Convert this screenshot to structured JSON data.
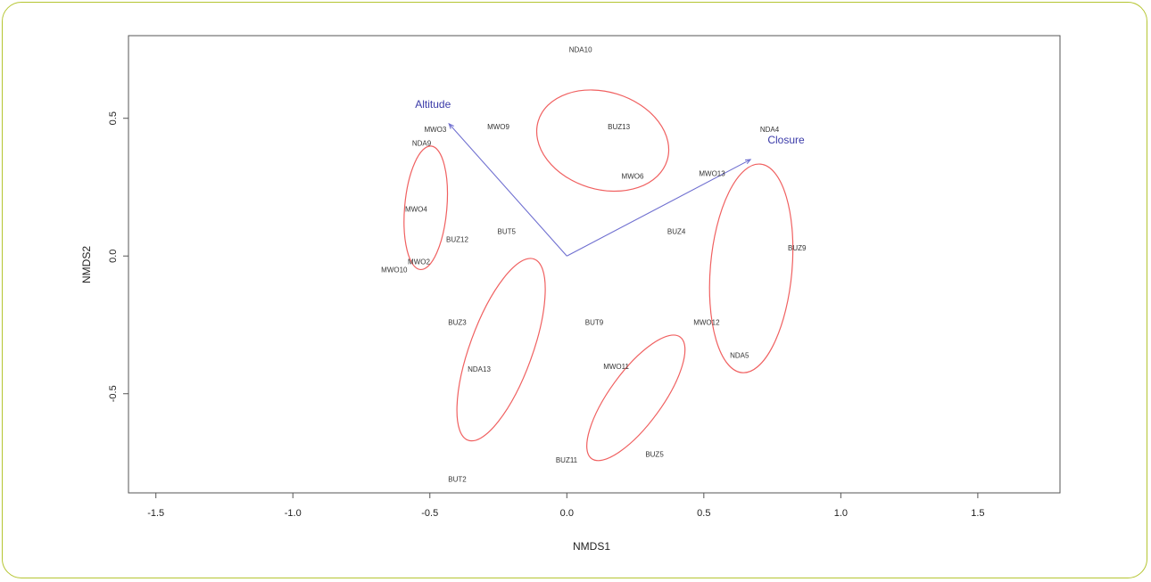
{
  "chart_data": {
    "type": "scatter",
    "title": "",
    "xlabel": "NMDS1",
    "ylabel": "NMDS2",
    "xlim": [
      -1.6,
      1.8
    ],
    "ylim": [
      -0.86,
      0.8
    ],
    "xticks": [
      "-1.5",
      "-1.0",
      "-0.5",
      "0.0",
      "0.5",
      "1.0",
      "1.5"
    ],
    "xtick_values": [
      -1.5,
      -1.0,
      -0.5,
      0.0,
      0.5,
      1.0,
      1.5
    ],
    "yticks": [
      "-0.5",
      "0.0",
      "0.5"
    ],
    "ytick_values": [
      -0.5,
      0.0,
      0.5
    ],
    "grid": false,
    "colors": {
      "points": "#333333",
      "ellipses": "#f06060",
      "vectors": "#6f6fd0",
      "vector_labels": "#3a3aa8",
      "frame_accent": "#b5c531"
    },
    "points": [
      {
        "label": "NDA10",
        "x": 0.05,
        "y": 0.75
      },
      {
        "label": "BUZ13",
        "x": 0.19,
        "y": 0.47
      },
      {
        "label": "MWO9",
        "x": -0.25,
        "y": 0.47
      },
      {
        "label": "MWO3",
        "x": -0.48,
        "y": 0.46
      },
      {
        "label": "NDA9",
        "x": -0.53,
        "y": 0.41
      },
      {
        "label": "NDA4",
        "x": 0.74,
        "y": 0.46
      },
      {
        "label": "MWO6",
        "x": 0.24,
        "y": 0.29
      },
      {
        "label": "MWO13",
        "x": 0.53,
        "y": 0.3
      },
      {
        "label": "MWO4",
        "x": -0.55,
        "y": 0.17
      },
      {
        "label": "BUT5",
        "x": -0.22,
        "y": 0.09
      },
      {
        "label": "BUZ12",
        "x": -0.4,
        "y": 0.06
      },
      {
        "label": "BUZ4",
        "x": 0.4,
        "y": 0.09
      },
      {
        "label": "BUZ9",
        "x": 0.84,
        "y": 0.03
      },
      {
        "label": "MWO2",
        "x": -0.54,
        "y": -0.02
      },
      {
        "label": "MWO10",
        "x": -0.63,
        "y": -0.05
      },
      {
        "label": "BUZ3",
        "x": -0.4,
        "y": -0.24
      },
      {
        "label": "BUT9",
        "x": 0.1,
        "y": -0.24
      },
      {
        "label": "MWO12",
        "x": 0.51,
        "y": -0.24
      },
      {
        "label": "NDA5",
        "x": 0.63,
        "y": -0.36
      },
      {
        "label": "NDA13",
        "x": -0.32,
        "y": -0.41
      },
      {
        "label": "MWO11",
        "x": 0.18,
        "y": -0.4
      },
      {
        "label": "BUZ11",
        "x": -0.001,
        "y": -0.74
      },
      {
        "label": "BUZ5",
        "x": 0.32,
        "y": -0.72
      },
      {
        "label": "BUT2",
        "x": -0.4,
        "y": -0.81
      }
    ],
    "ellipses": [
      {
        "cx": -0.515,
        "cy": 0.175,
        "rx": 0.077,
        "ry": 0.225,
        "angle": 5
      },
      {
        "cx": 0.131,
        "cy": 0.419,
        "rx": 0.246,
        "ry": 0.177,
        "angle": 17
      },
      {
        "cx": 0.673,
        "cy": -0.045,
        "rx": 0.149,
        "ry": 0.38,
        "angle": 5
      },
      {
        "cx": -0.24,
        "cy": -0.34,
        "rx": 0.114,
        "ry": 0.35,
        "angle": 20
      },
      {
        "cx": 0.252,
        "cy": -0.515,
        "rx": 0.096,
        "ry": 0.273,
        "angle": 36
      }
    ],
    "vectors": [
      {
        "label": "Altitude",
        "x": -0.43,
        "y": 0.48
      },
      {
        "label": "Closure",
        "x": 0.67,
        "y": 0.35
      }
    ]
  }
}
